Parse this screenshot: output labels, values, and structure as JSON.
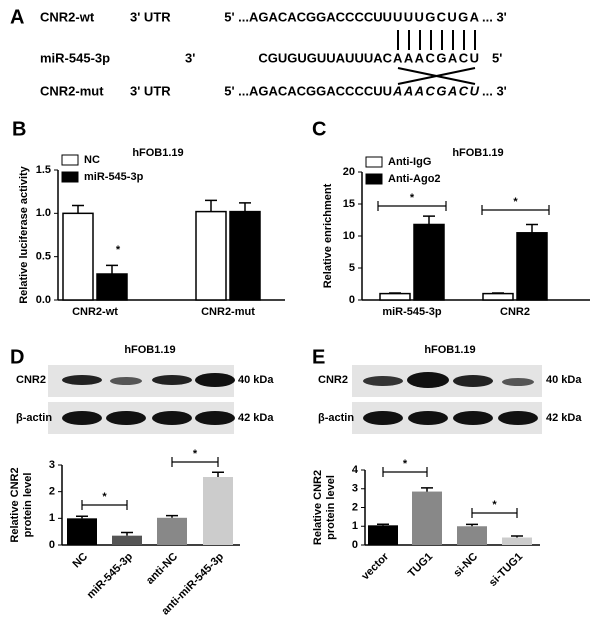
{
  "panel_a": {
    "letter": "A",
    "rows": [
      {
        "name": "CNR2-wt",
        "region": "3' UTR",
        "prefix": "5' ...AGACACGGACCCCUU",
        "seed": "UUUGCUGA",
        "suffix": "... 3'"
      },
      {
        "name": "miR-545-3p",
        "region": "3'",
        "prefix": "CGUGUGUUAUUUAC",
        "seed": "AAACGACU",
        "suffix": "5'"
      },
      {
        "name": "CNR2-mut",
        "region": "3' UTR",
        "prefix": "5' ...AGACACGGACCCCUU",
        "seed": "AAACGACU",
        "suffix": "... 3'"
      }
    ]
  },
  "blots": [
    {
      "rows": [
        "CNR2",
        "β-actin"
      ],
      "sizes": [
        "40 kDa",
        "42 kDa"
      ]
    },
    {
      "rows": [
        "CNR2",
        "β-actin"
      ],
      "sizes": [
        "40 kDa",
        "42 kDa"
      ]
    }
  ],
  "chart_data": [
    {
      "type": "bar",
      "letter": "B",
      "title": "hFOB1.19",
      "y_label": [
        "Relative luciferase activity"
      ],
      "categories": [
        "CNR2-wt",
        "CNR2-mut"
      ],
      "series": [
        {
          "name": "NC",
          "color": "#ffffff",
          "values": [
            1.0,
            1.02
          ],
          "errors": [
            0.09,
            0.13
          ]
        },
        {
          "name": "miR-545-3p",
          "color": "#000000",
          "values": [
            0.3,
            1.02
          ],
          "errors": [
            0.1,
            0.1
          ]
        }
      ],
      "ylim": [
        0,
        1.5
      ],
      "yticks": [
        {
          "value": 0,
          "label": "0.0"
        },
        0.5,
        {
          "value": 1,
          "label": "1.0"
        },
        1.5
      ],
      "annotations": [
        "*"
      ],
      "legend": "top-left"
    },
    {
      "type": "bar",
      "letter": "C",
      "title": "hFOB1.19",
      "y_label": [
        "Relative enrichment"
      ],
      "categories": [
        "miR-545-3p",
        "CNR2"
      ],
      "series": [
        {
          "name": "Anti-IgG",
          "color": "#ffffff",
          "values": [
            1,
            1
          ],
          "errors": [
            0.1,
            0.1
          ]
        },
        {
          "name": "Anti-Ago2",
          "color": "#000000",
          "values": [
            11.8,
            10.5
          ],
          "errors": [
            1.3,
            1.3
          ]
        }
      ],
      "ylim": [
        0,
        20
      ],
      "yticks": [
        0,
        5,
        10,
        15,
        20
      ],
      "annotations": [
        "*",
        "*"
      ],
      "legend": "top-left"
    },
    {
      "type": "bar",
      "letter": "D",
      "title": "hFOB1.19",
      "y_label": [
        "Relative CNR2",
        "protein level"
      ],
      "categories": [
        "NC",
        "miR-545-3p",
        "anti-NC",
        "anti-miR-545-3p"
      ],
      "values": [
        1.0,
        0.35,
        1.02,
        2.55
      ],
      "errors": [
        0.08,
        0.12,
        0.08,
        0.18
      ],
      "colors": [
        "#000000",
        "#555555",
        "#888888",
        "#cccccc"
      ],
      "ylim": [
        0,
        3
      ],
      "yticks": [
        0,
        1,
        2,
        3
      ],
      "annotations": [
        "*",
        "*"
      ]
    },
    {
      "type": "bar",
      "letter": "E",
      "title": "hFOB1.19",
      "y_label": [
        "Relative CNR2",
        "protein level"
      ],
      "categories": [
        "vector",
        "TUG1",
        "si-NC",
        "si-TUG1"
      ],
      "values": [
        1.05,
        2.85,
        1.0,
        0.4
      ],
      "errors": [
        0.06,
        0.2,
        0.1,
        0.08
      ],
      "colors": [
        "#000000",
        "#888888",
        "#888888",
        "#cccccc"
      ],
      "ylim": [
        0,
        4
      ],
      "yticks": [
        0,
        1,
        2,
        3,
        4
      ],
      "annotations": [
        "*",
        "*"
      ]
    }
  ]
}
